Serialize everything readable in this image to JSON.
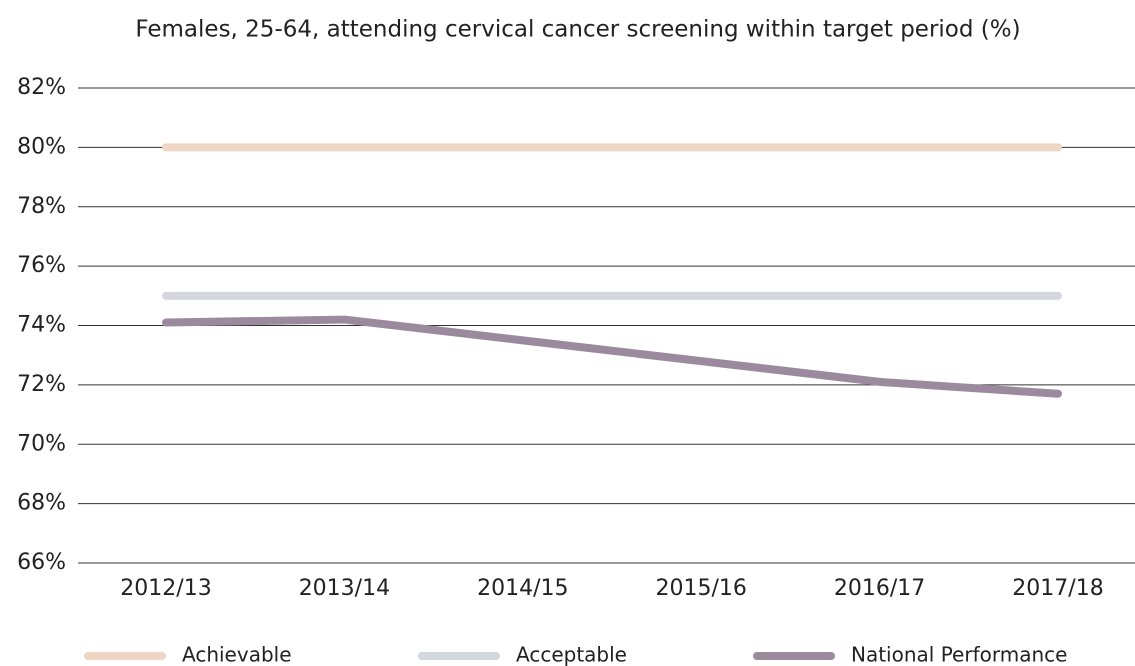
{
  "chart_data": {
    "type": "line",
    "title": "Females, 25-64, attending cervical cancer screening within target period (%)",
    "categories": [
      "2012/13",
      "2013/14",
      "2014/15",
      "2015/16",
      "2016/17",
      "2017/18"
    ],
    "series": [
      {
        "name": "Achievable",
        "color": "#efd5c3",
        "values": [
          80,
          80,
          80,
          80,
          80,
          80
        ]
      },
      {
        "name": "Acceptable",
        "color": "#d5d7de",
        "values": [
          75,
          75,
          75,
          75,
          75,
          75
        ]
      },
      {
        "name": "National Performance",
        "color": "#9b8a9e",
        "values": [
          74.1,
          74.2,
          73.5,
          72.8,
          72.1,
          71.7
        ]
      }
    ],
    "ylim": [
      66,
      82
    ],
    "yticks": [
      {
        "value": 66,
        "label": "66%"
      },
      {
        "value": 68,
        "label": "68%"
      },
      {
        "value": 70,
        "label": "70%"
      },
      {
        "value": 72,
        "label": "72%"
      },
      {
        "value": 74,
        "label": "74%"
      },
      {
        "value": 76,
        "label": "76%"
      },
      {
        "value": 78,
        "label": "78%"
      },
      {
        "value": 80,
        "label": "80%"
      },
      {
        "value": 82,
        "label": "82%"
      }
    ],
    "grid": true
  }
}
